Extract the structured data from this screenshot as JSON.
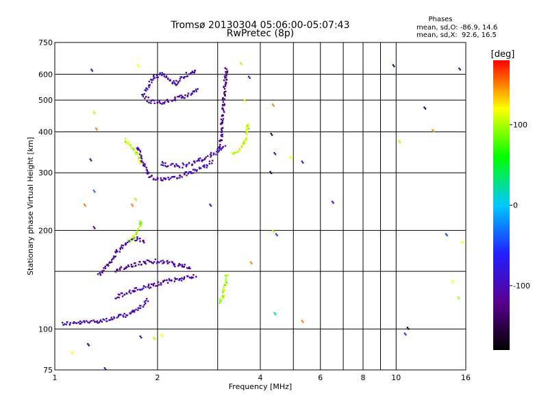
{
  "chart_data": {
    "type": "scatter",
    "title": "Tromsø 20130304 05:06:00-05:07:43",
    "subtitle": "RwPretec (8p)",
    "xlabel": "Frequency [MHz]",
    "ylabel": "Stationary phase Virtual Height [km]",
    "x_scale": "log",
    "y_scale": "log",
    "xlim": [
      1,
      16
    ],
    "ylim": [
      75,
      750
    ],
    "x_ticks": [
      1,
      2,
      4,
      6,
      8,
      10,
      16
    ],
    "x_tick_labels": [
      "1",
      "2",
      "4",
      "6",
      "8",
      "10",
      "16"
    ],
    "x_minor_ticks": [
      3,
      5,
      7,
      9
    ],
    "y_ticks": [
      75,
      100,
      200,
      300,
      400,
      500,
      600,
      750
    ],
    "y_tick_labels": [
      "75",
      "100",
      "200",
      "300",
      "400",
      "500",
      "600",
      "750"
    ],
    "y_minor_ticks": [
      150
    ],
    "grid": true,
    "stats": {
      "heading": "Phases",
      "line_o": "mean, sd,O: -86.9, 14.6",
      "line_x": "mean, sd,X:  92.6, 16.5"
    },
    "colorbar": {
      "label": "[deg]",
      "range": [
        -180,
        180
      ],
      "ticks": [
        100,
        0,
        -100
      ],
      "tick_labels": [
        "100",
        "0",
        "-100"
      ],
      "colormap": [
        "#000000",
        "#5a0090",
        "#2020ff",
        "#00c8ff",
        "#00ff00",
        "#ffff00",
        "#ff0000"
      ]
    },
    "traces": [
      {
        "x": [
          1.05,
          1.15,
          1.25,
          1.35,
          1.45,
          1.55,
          1.65,
          1.75,
          1.82,
          1.88
        ],
        "y": [
          104,
          104,
          105,
          106,
          107,
          109,
          111,
          115,
          119,
          123
        ],
        "phase": -100
      },
      {
        "x": [
          1.5,
          1.6,
          1.7,
          1.8,
          1.9,
          2.0,
          2.1,
          2.2,
          2.3,
          2.45,
          2.6
        ],
        "y": [
          125,
          128,
          131,
          133,
          135,
          137,
          139,
          141,
          142,
          144,
          146
        ],
        "phase": -105
      },
      {
        "x": [
          1.5,
          1.6,
          1.7,
          1.8,
          1.9,
          2.0,
          2.1,
          2.2,
          2.35,
          2.5
        ],
        "y": [
          150,
          154,
          157,
          159,
          161,
          161,
          160,
          158,
          156,
          154
        ],
        "phase": -110
      },
      {
        "x": [
          1.35,
          1.45,
          1.55,
          1.65,
          1.75,
          1.85
        ],
        "y": [
          145,
          160,
          175,
          185,
          190,
          183
        ],
        "phase": -105
      },
      {
        "x": [
          3.05,
          3.1,
          3.15,
          3.2
        ],
        "y": [
          121,
          126,
          137,
          147
        ],
        "phase": 100
      },
      {
        "x": [
          1.75,
          1.8,
          1.85,
          1.9,
          2.0,
          2.1,
          2.2,
          2.35,
          2.5,
          2.7,
          2.9
        ],
        "y": [
          360,
          330,
          305,
          292,
          287,
          288,
          290,
          294,
          300,
          310,
          325
        ],
        "phase": -100
      },
      {
        "x": [
          2.05,
          2.15,
          2.3,
          2.5,
          2.7,
          2.95,
          3.15
        ],
        "y": [
          321,
          316,
          314,
          319,
          330,
          345,
          365
        ],
        "phase": -95
      },
      {
        "x": [
          3.05,
          3.08,
          3.1,
          3.12,
          3.14,
          3.16,
          3.18
        ],
        "y": [
          360,
          395,
          440,
          480,
          530,
          580,
          630
        ],
        "phase": -120
      },
      {
        "x": [
          1.85,
          1.9,
          2.0,
          2.1,
          2.2,
          2.35,
          2.5,
          2.65
        ],
        "y": [
          510,
          495,
          490,
          495,
          500,
          510,
          520,
          540
        ],
        "phase": -105
      },
      {
        "x": [
          1.8,
          1.9,
          1.95,
          2.05,
          2.15,
          2.25,
          2.45,
          2.6
        ],
        "y": [
          520,
          560,
          590,
          600,
          580,
          560,
          600,
          620
        ],
        "phase": -100
      },
      {
        "x": [
          3.3,
          3.45,
          3.6,
          3.7
        ],
        "y": [
          340,
          345,
          375,
          425
        ],
        "phase": 110
      },
      {
        "x": [
          1.6,
          1.7,
          1.75,
          1.8
        ],
        "y": [
          380,
          355,
          340,
          320
        ],
        "phase": 100
      },
      {
        "x": [
          1.65,
          1.7,
          1.75,
          1.8
        ],
        "y": [
          185,
          190,
          200,
          215
        ],
        "phase": 100
      }
    ],
    "points": [
      {
        "x": 1.28,
        "y": 620,
        "phase": -100
      },
      {
        "x": 1.3,
        "y": 460,
        "phase": 100
      },
      {
        "x": 1.32,
        "y": 410,
        "phase": 150
      },
      {
        "x": 1.27,
        "y": 330,
        "phase": -100
      },
      {
        "x": 1.3,
        "y": 265,
        "phase": -30
      },
      {
        "x": 1.22,
        "y": 240,
        "phase": 150
      },
      {
        "x": 1.3,
        "y": 205,
        "phase": -120
      },
      {
        "x": 1.25,
        "y": 90,
        "phase": -140
      },
      {
        "x": 1.12,
        "y": 85,
        "phase": 120
      },
      {
        "x": 1.4,
        "y": 76,
        "phase": -100
      },
      {
        "x": 1.78,
        "y": 95,
        "phase": -100
      },
      {
        "x": 1.95,
        "y": 94,
        "phase": 100
      },
      {
        "x": 2.05,
        "y": 96,
        "phase": 120
      },
      {
        "x": 1.68,
        "y": 240,
        "phase": 150
      },
      {
        "x": 1.75,
        "y": 640,
        "phase": 120
      },
      {
        "x": 1.72,
        "y": 250,
        "phase": 100
      },
      {
        "x": 2.85,
        "y": 240,
        "phase": -100
      },
      {
        "x": 3.5,
        "y": 650,
        "phase": 100
      },
      {
        "x": 3.6,
        "y": 500,
        "phase": 120
      },
      {
        "x": 3.7,
        "y": 590,
        "phase": -60
      },
      {
        "x": 3.75,
        "y": 160,
        "phase": 150
      },
      {
        "x": 4.35,
        "y": 485,
        "phase": 150
      },
      {
        "x": 4.3,
        "y": 395,
        "phase": -140
      },
      {
        "x": 4.4,
        "y": 345,
        "phase": -100
      },
      {
        "x": 4.28,
        "y": 302,
        "phase": -140
      },
      {
        "x": 4.35,
        "y": 200,
        "phase": 100
      },
      {
        "x": 4.45,
        "y": 195,
        "phase": -50
      },
      {
        "x": 4.4,
        "y": 112,
        "phase": 20
      },
      {
        "x": 4.9,
        "y": 335,
        "phase": 120
      },
      {
        "x": 5.3,
        "y": 325,
        "phase": -60
      },
      {
        "x": 5.3,
        "y": 106,
        "phase": 150
      },
      {
        "x": 6.5,
        "y": 245,
        "phase": -60
      },
      {
        "x": 9.8,
        "y": 640,
        "phase": -140
      },
      {
        "x": 10.2,
        "y": 375,
        "phase": 100
      },
      {
        "x": 10.8,
        "y": 101,
        "phase": -140
      },
      {
        "x": 10.6,
        "y": 97,
        "phase": -50
      },
      {
        "x": 12.1,
        "y": 475,
        "phase": -150
      },
      {
        "x": 12.8,
        "y": 405,
        "phase": 150
      },
      {
        "x": 14.0,
        "y": 195,
        "phase": -50
      },
      {
        "x": 15.3,
        "y": 625,
        "phase": -100
      },
      {
        "x": 14.6,
        "y": 140,
        "phase": 120
      },
      {
        "x": 15.2,
        "y": 125,
        "phase": 100
      },
      {
        "x": 15.6,
        "y": 185,
        "phase": 120
      }
    ]
  }
}
